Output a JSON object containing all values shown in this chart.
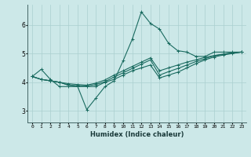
{
  "xlabel": "Humidex (Indice chaleur)",
  "bg_color": "#cce8e8",
  "line_color": "#1a6b60",
  "grid_color": "#aacfcf",
  "x_min": -0.5,
  "x_max": 23.5,
  "y_min": 2.6,
  "y_max": 6.7,
  "x_ticks": [
    0,
    1,
    2,
    3,
    4,
    5,
    6,
    7,
    8,
    9,
    10,
    11,
    12,
    13,
    14,
    15,
    16,
    17,
    18,
    19,
    20,
    21,
    22,
    23
  ],
  "y_ticks": [
    3,
    4,
    5,
    6
  ],
  "lines": [
    [
      4.2,
      4.45,
      4.1,
      3.85,
      3.85,
      3.85,
      3.05,
      3.45,
      3.85,
      4.05,
      4.75,
      5.5,
      6.45,
      6.05,
      5.85,
      5.35,
      5.1,
      5.05,
      4.9,
      4.9,
      5.05,
      5.05,
      5.05,
      5.05
    ],
    [
      4.2,
      4.1,
      4.05,
      4.0,
      3.9,
      3.85,
      3.85,
      3.85,
      4.0,
      4.1,
      4.25,
      4.4,
      4.5,
      4.6,
      4.15,
      4.25,
      4.35,
      4.5,
      4.65,
      4.78,
      4.88,
      4.95,
      5.0,
      5.05
    ],
    [
      4.2,
      4.1,
      4.05,
      4.0,
      3.9,
      3.88,
      3.87,
      3.92,
      4.02,
      4.18,
      4.33,
      4.48,
      4.63,
      4.78,
      4.25,
      4.37,
      4.48,
      4.6,
      4.72,
      4.82,
      4.92,
      4.97,
      5.02,
      5.05
    ],
    [
      4.2,
      4.1,
      4.05,
      4.0,
      3.95,
      3.92,
      3.9,
      3.97,
      4.08,
      4.25,
      4.4,
      4.55,
      4.7,
      4.85,
      4.4,
      4.5,
      4.6,
      4.7,
      4.78,
      4.87,
      4.93,
      4.98,
      5.03,
      5.05
    ]
  ]
}
